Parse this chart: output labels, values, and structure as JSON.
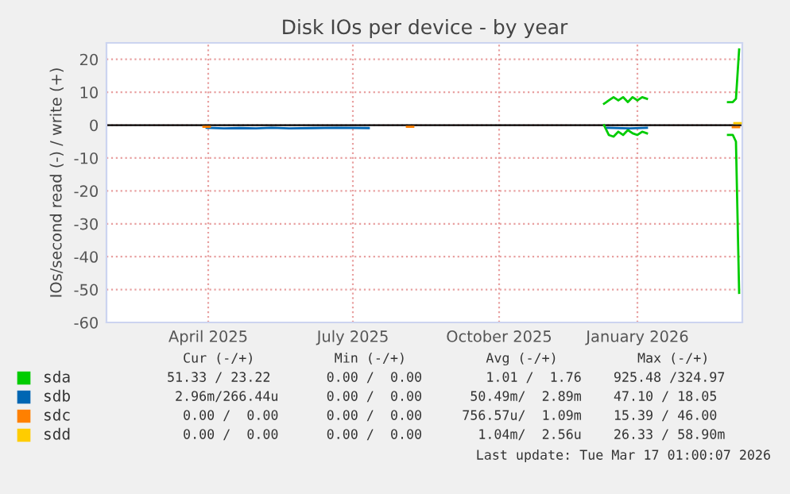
{
  "chart_data": {
    "type": "line",
    "title": "Disk IOs per device - by year",
    "ylabel": "IOs/second read (-) / write (+)",
    "xlim": [
      "2025-02-10",
      "2026-03-17"
    ],
    "xticks": [
      {
        "value": "2025-04-15",
        "label": "April 2025"
      },
      {
        "value": "2025-07-15",
        "label": "July 2025"
      },
      {
        "value": "2025-10-15",
        "label": "October 2025"
      },
      {
        "value": "2026-01-10",
        "label": "January 2026"
      }
    ],
    "ylim": [
      -60,
      25
    ],
    "yticks": [
      -60,
      -50,
      -40,
      -30,
      -20,
      -10,
      0,
      10,
      20
    ],
    "grid": true,
    "legend": "bottom",
    "marker": "none",
    "line_style": "solid",
    "ref_lines": [
      {
        "axis": "y",
        "value": 0,
        "color": "#000000"
      }
    ],
    "series": [
      {
        "name": "sda",
        "color": "#00cc00",
        "x": [
          "2025-12-20",
          "2025-12-23",
          "2025-12-26",
          "2025-12-29",
          "2026-01-01",
          "2026-01-04",
          "2026-01-07",
          "2026-01-10",
          "2026-01-13",
          "2026-01-16",
          "2026-02-01",
          "2026-03-08",
          "2026-03-11",
          "2026-03-13",
          "2026-03-15"
        ],
        "values": [
          6.5,
          7.5,
          8.5,
          7.5,
          8.5,
          7,
          8.5,
          7.5,
          8.5,
          8,
          null,
          7,
          7,
          8,
          23
        ]
      },
      {
        "color": "#00cc00",
        "x": [
          "2025-12-20",
          "2025-12-23",
          "2025-12-26",
          "2025-12-29",
          "2026-01-01",
          "2026-01-04",
          "2026-01-07",
          "2026-01-10",
          "2026-01-13",
          "2026-01-16",
          "2026-02-01",
          "2026-03-08",
          "2026-03-11",
          "2026-03-13",
          "2026-03-15"
        ],
        "values": [
          0,
          -3,
          -3.5,
          -2,
          -3,
          -1.5,
          -2.5,
          -3,
          -2,
          -2.5,
          null,
          -3,
          -3,
          -5,
          -51
        ]
      },
      {
        "name": "sdb",
        "color": "#0066b3",
        "x": [
          "2025-04-14",
          "2025-04-25",
          "2025-05-05",
          "2025-05-15",
          "2025-05-25",
          "2025-06-05",
          "2025-06-20",
          "2025-07-05",
          "2025-07-25",
          "2025-10-01",
          "2025-12-22",
          "2026-01-05",
          "2026-01-16"
        ],
        "values": [
          -0.8,
          -1,
          -0.9,
          -1,
          -0.8,
          -1,
          -0.9,
          -0.8,
          -0.9,
          null,
          -0.8,
          -1,
          -0.8
        ]
      },
      {
        "name": "sdc",
        "color": "#ff8000",
        "x": [
          "2025-04-12",
          "2025-04-16",
          "2025-06-01",
          "2025-08-18",
          "2025-08-22",
          "2026-01-01",
          "2026-03-11",
          "2026-03-15"
        ],
        "values": [
          -0.5,
          -0.5,
          null,
          -0.5,
          -0.5,
          null,
          -0.6,
          -0.6
        ]
      },
      {
        "name": "sdd",
        "color": "#ffcc00",
        "x": [
          "2026-03-12",
          "2026-03-16"
        ],
        "values": [
          0.6,
          0.6
        ]
      }
    ],
    "annotations": [
      "  Cur (-/+)          Min (-/+)          Avg (-/+)          Max (-/+)",
      "51.33 / 23.22       0.00 /  0.00        1.01 /  1.76    925.48 /324.97",
      " 2.96m/266.44u      0.00 /  0.00      50.49m/  2.89m    47.10 / 18.05",
      "  0.00 /  0.00      0.00 /  0.00     756.57u/  1.09m    15.39 / 46.00",
      "  0.00 /  0.00      0.00 /  0.00       1.04m/  2.56u    26.33 / 58.90m",
      "Last update: Tue Mar 17 01:00:07 2026"
    ]
  }
}
